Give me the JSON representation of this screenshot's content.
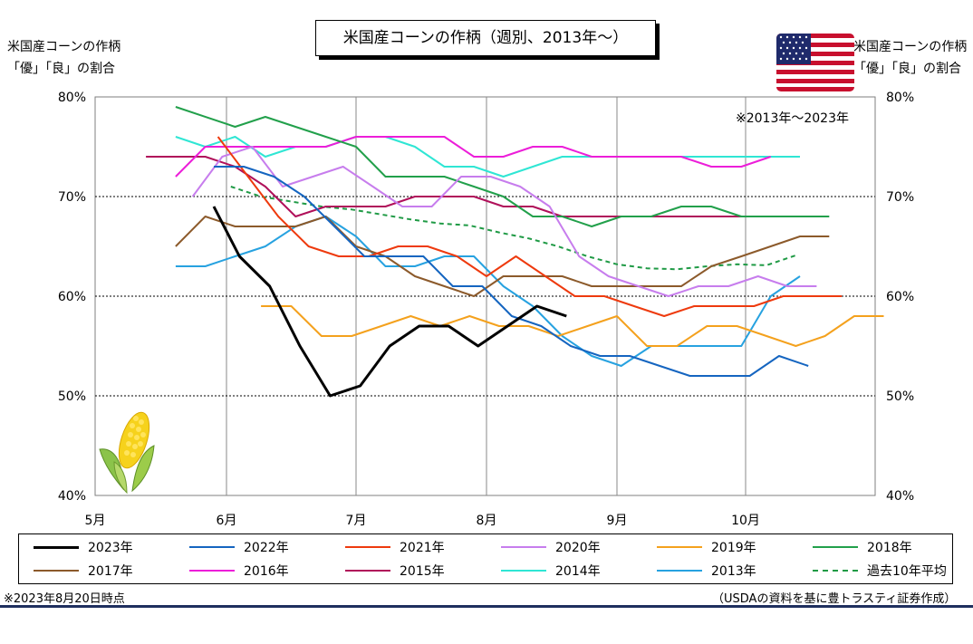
{
  "title": "米国産コーンの作柄（週別、2013年～）",
  "left_axis_label": [
    "米国産コーンの作柄",
    "「優」「良」の割合"
  ],
  "right_axis_label": [
    "米国産コーンの作柄",
    "「優」「良」の割合"
  ],
  "note": "※2013年～2023年",
  "footnote_left": "※2023年8月20日時点",
  "footnote_right": "（USDAの資料を基に豊トラスティ証券作成）",
  "icons": [
    "us-flag-icon",
    "corn-icon"
  ],
  "chart_data": {
    "type": "line",
    "x_ticks": [
      "5月",
      "6月",
      "7月",
      "8月",
      "9月",
      "10月"
    ],
    "y_ticks": [
      "40%",
      "50%",
      "60%",
      "70%",
      "80%"
    ],
    "ylim": [
      40,
      80
    ],
    "x_unit": "date (month/day)",
    "grid": "horizontal dotted at 50%, 60%, 70%; vertical at month starts",
    "series": [
      {
        "name": "2023年",
        "color": "#000000",
        "width": 3,
        "dash": "",
        "points": [
          [
            "5/29",
            69
          ],
          [
            "6/4",
            64
          ],
          [
            "6/11",
            61
          ],
          [
            "6/18",
            55
          ],
          [
            "6/25",
            50
          ],
          [
            "7/2",
            51
          ],
          [
            "7/9",
            55
          ],
          [
            "7/16",
            57
          ],
          [
            "7/23",
            57
          ],
          [
            "7/30",
            55
          ],
          [
            "8/6",
            57
          ],
          [
            "8/13",
            59
          ],
          [
            "8/20",
            58
          ]
        ]
      },
      {
        "name": "2022年",
        "color": "#1565c0",
        "width": 2,
        "dash": "",
        "points": [
          [
            "5/29",
            73
          ],
          [
            "6/5",
            73
          ],
          [
            "6/12",
            72
          ],
          [
            "6/19",
            70
          ],
          [
            "6/26",
            67
          ],
          [
            "7/3",
            64
          ],
          [
            "7/10",
            64
          ],
          [
            "7/17",
            64
          ],
          [
            "7/24",
            61
          ],
          [
            "7/31",
            61
          ],
          [
            "8/7",
            58
          ],
          [
            "8/14",
            57
          ],
          [
            "8/21",
            55
          ],
          [
            "8/28",
            54
          ],
          [
            "9/4",
            54
          ],
          [
            "9/11",
            53
          ],
          [
            "9/18",
            52
          ],
          [
            "9/25",
            52
          ],
          [
            "10/2",
            52
          ],
          [
            "10/9",
            54
          ],
          [
            "10/16",
            53
          ]
        ]
      },
      {
        "name": "2021年",
        "color": "#ee3a0e",
        "width": 2,
        "dash": "",
        "points": [
          [
            "5/30",
            76
          ],
          [
            "6/6",
            72
          ],
          [
            "6/13",
            68
          ],
          [
            "6/20",
            65
          ],
          [
            "6/27",
            64
          ],
          [
            "7/4",
            64
          ],
          [
            "7/11",
            65
          ],
          [
            "7/18",
            65
          ],
          [
            "7/25",
            64
          ],
          [
            "8/1",
            62
          ],
          [
            "8/8",
            64
          ],
          [
            "8/15",
            62
          ],
          [
            "8/22",
            60
          ],
          [
            "8/29",
            60
          ],
          [
            "9/5",
            59
          ],
          [
            "9/12",
            58
          ],
          [
            "9/19",
            59
          ],
          [
            "9/26",
            59
          ],
          [
            "10/3",
            59
          ],
          [
            "10/10",
            60
          ],
          [
            "10/17",
            60
          ],
          [
            "10/24",
            60
          ]
        ]
      },
      {
        "name": "2020年",
        "color": "#c77ded",
        "width": 2,
        "dash": "",
        "points": [
          [
            "5/24",
            70
          ],
          [
            "5/31",
            74
          ],
          [
            "6/7",
            75
          ],
          [
            "6/14",
            71
          ],
          [
            "6/21",
            72
          ],
          [
            "6/28",
            73
          ],
          [
            "7/5",
            71
          ],
          [
            "7/12",
            69
          ],
          [
            "7/19",
            69
          ],
          [
            "7/26",
            72
          ],
          [
            "8/2",
            72
          ],
          [
            "8/9",
            71
          ],
          [
            "8/16",
            69
          ],
          [
            "8/23",
            64
          ],
          [
            "8/30",
            62
          ],
          [
            "9/6",
            61
          ],
          [
            "9/13",
            60
          ],
          [
            "9/20",
            61
          ],
          [
            "9/27",
            61
          ],
          [
            "10/4",
            62
          ],
          [
            "10/11",
            61
          ],
          [
            "10/18",
            61
          ]
        ]
      },
      {
        "name": "2019年",
        "color": "#f4a11d",
        "width": 2,
        "dash": "",
        "points": [
          [
            "6/9",
            59
          ],
          [
            "6/16",
            59
          ],
          [
            "6/23",
            56
          ],
          [
            "6/30",
            56
          ],
          [
            "7/7",
            57
          ],
          [
            "7/14",
            58
          ],
          [
            "7/21",
            57
          ],
          [
            "7/28",
            58
          ],
          [
            "8/4",
            57
          ],
          [
            "8/11",
            57
          ],
          [
            "8/18",
            56
          ],
          [
            "8/25",
            57
          ],
          [
            "9/1",
            58
          ],
          [
            "9/8",
            55
          ],
          [
            "9/15",
            55
          ],
          [
            "9/22",
            57
          ],
          [
            "9/29",
            57
          ],
          [
            "10/6",
            56
          ],
          [
            "10/13",
            55
          ],
          [
            "10/20",
            56
          ],
          [
            "10/27",
            58
          ],
          [
            "11/3",
            58
          ]
        ]
      },
      {
        "name": "2018年",
        "color": "#22a04b",
        "width": 2,
        "dash": "",
        "points": [
          [
            "5/20",
            79
          ],
          [
            "6/3",
            77
          ],
          [
            "6/10",
            78
          ],
          [
            "6/24",
            76
          ],
          [
            "7/1",
            75
          ],
          [
            "7/8",
            72
          ],
          [
            "7/15",
            72
          ],
          [
            "7/22",
            72
          ],
          [
            "7/29",
            71
          ],
          [
            "8/5",
            70
          ],
          [
            "8/12",
            68
          ],
          [
            "8/19",
            68
          ],
          [
            "8/26",
            67
          ],
          [
            "9/2",
            68
          ],
          [
            "9/9",
            68
          ],
          [
            "9/16",
            69
          ],
          [
            "9/23",
            69
          ],
          [
            "9/30",
            68
          ],
          [
            "10/7",
            68
          ],
          [
            "10/14",
            68
          ],
          [
            "10/21",
            68
          ]
        ]
      },
      {
        "name": "2017年",
        "color": "#8c5a2b",
        "width": 2,
        "dash": "",
        "points": [
          [
            "5/20",
            65
          ],
          [
            "5/27",
            68
          ],
          [
            "6/3",
            67
          ],
          [
            "6/10",
            67
          ],
          [
            "6/17",
            67
          ],
          [
            "6/24",
            68
          ],
          [
            "7/1",
            65
          ],
          [
            "7/8",
            64
          ],
          [
            "7/15",
            62
          ],
          [
            "7/22",
            61
          ],
          [
            "7/29",
            60
          ],
          [
            "8/5",
            62
          ],
          [
            "8/12",
            62
          ],
          [
            "8/19",
            62
          ],
          [
            "8/26",
            61
          ],
          [
            "9/2",
            61
          ],
          [
            "9/9",
            61
          ],
          [
            "9/16",
            61
          ],
          [
            "9/23",
            63
          ],
          [
            "9/30",
            64
          ],
          [
            "10/7",
            65
          ],
          [
            "10/14",
            66
          ],
          [
            "10/21",
            66
          ]
        ]
      },
      {
        "name": "2016年",
        "color": "#ec1ed9",
        "width": 2,
        "dash": "",
        "points": [
          [
            "5/20",
            72
          ],
          [
            "5/27",
            75
          ],
          [
            "6/3",
            75
          ],
          [
            "6/10",
            75
          ],
          [
            "6/17",
            75
          ],
          [
            "6/24",
            75
          ],
          [
            "7/1",
            76
          ],
          [
            "7/8",
            76
          ],
          [
            "7/15",
            76
          ],
          [
            "7/22",
            76
          ],
          [
            "7/29",
            74
          ],
          [
            "8/5",
            74
          ],
          [
            "8/12",
            75
          ],
          [
            "8/19",
            75
          ],
          [
            "8/26",
            74
          ],
          [
            "9/2",
            74
          ],
          [
            "9/9",
            74
          ],
          [
            "9/16",
            74
          ],
          [
            "9/23",
            73
          ],
          [
            "9/30",
            73
          ],
          [
            "10/7",
            74
          ]
        ]
      },
      {
        "name": "2015年",
        "color": "#b0105a",
        "width": 2,
        "dash": "",
        "points": [
          [
            "5/13",
            74
          ],
          [
            "5/27",
            74
          ],
          [
            "6/3",
            73
          ],
          [
            "6/10",
            71
          ],
          [
            "6/17",
            68
          ],
          [
            "6/24",
            69
          ],
          [
            "7/1",
            69
          ],
          [
            "7/8",
            69
          ],
          [
            "7/15",
            70
          ],
          [
            "7/22",
            70
          ],
          [
            "7/29",
            70
          ],
          [
            "8/5",
            69
          ],
          [
            "8/12",
            69
          ],
          [
            "8/19",
            68
          ],
          [
            "8/26",
            68
          ],
          [
            "9/2",
            68
          ],
          [
            "9/9",
            68
          ],
          [
            "9/16",
            68
          ],
          [
            "9/23",
            68
          ],
          [
            "9/30",
            68
          ],
          [
            "10/7",
            68
          ]
        ]
      },
      {
        "name": "2014年",
        "color": "#2fe6d4",
        "width": 2,
        "dash": "",
        "points": [
          [
            "5/20",
            76
          ],
          [
            "5/27",
            75
          ],
          [
            "6/3",
            76
          ],
          [
            "6/10",
            74
          ],
          [
            "6/17",
            75
          ],
          [
            "6/24",
            75
          ],
          [
            "7/1",
            76
          ],
          [
            "7/8",
            76
          ],
          [
            "7/15",
            75
          ],
          [
            "7/22",
            73
          ],
          [
            "7/29",
            73
          ],
          [
            "8/5",
            72
          ],
          [
            "8/12",
            73
          ],
          [
            "8/19",
            74
          ],
          [
            "8/26",
            74
          ],
          [
            "9/2",
            74
          ],
          [
            "9/9",
            74
          ],
          [
            "9/16",
            74
          ],
          [
            "9/23",
            74
          ],
          [
            "9/30",
            74
          ],
          [
            "10/7",
            74
          ],
          [
            "10/14",
            74
          ]
        ]
      },
      {
        "name": "2013年",
        "color": "#27a2e0",
        "width": 2,
        "dash": "",
        "points": [
          [
            "5/20",
            63
          ],
          [
            "5/27",
            63
          ],
          [
            "6/3",
            64
          ],
          [
            "6/10",
            65
          ],
          [
            "6/17",
            67
          ],
          [
            "6/24",
            68
          ],
          [
            "7/1",
            66
          ],
          [
            "7/8",
            63
          ],
          [
            "7/15",
            63
          ],
          [
            "7/22",
            64
          ],
          [
            "7/29",
            64
          ],
          [
            "8/5",
            61
          ],
          [
            "8/12",
            59
          ],
          [
            "8/19",
            56
          ],
          [
            "8/26",
            54
          ],
          [
            "9/2",
            53
          ],
          [
            "9/9",
            55
          ],
          [
            "9/16",
            55
          ],
          [
            "9/23",
            55
          ],
          [
            "9/30",
            55
          ],
          [
            "10/7",
            60
          ],
          [
            "10/14",
            62
          ]
        ]
      },
      {
        "name": "過去10年平均",
        "color": "#1f9a45",
        "width": 2,
        "dash": "5,4",
        "points": [
          [
            "6/2",
            71
          ],
          [
            "6/9",
            70
          ],
          [
            "6/16",
            69.5
          ],
          [
            "6/23",
            69
          ],
          [
            "6/30",
            68.7
          ],
          [
            "7/7",
            68.2
          ],
          [
            "7/14",
            67.7
          ],
          [
            "7/21",
            67.3
          ],
          [
            "7/28",
            67.1
          ],
          [
            "8/4",
            66.4
          ],
          [
            "8/11",
            65.8
          ],
          [
            "8/18",
            65
          ],
          [
            "8/25",
            64
          ],
          [
            "9/1",
            63.2
          ],
          [
            "9/8",
            62.8
          ],
          [
            "9/15",
            62.7
          ],
          [
            "9/22",
            63
          ],
          [
            "9/29",
            63.2
          ],
          [
            "10/6",
            63.1
          ],
          [
            "10/13",
            64.1
          ]
        ]
      }
    ]
  }
}
